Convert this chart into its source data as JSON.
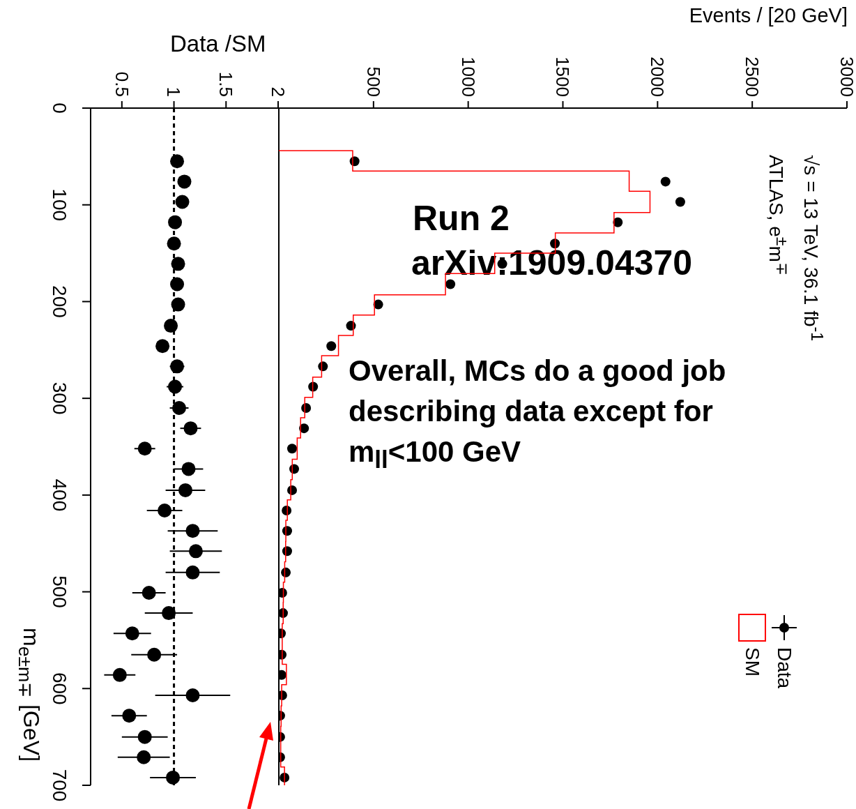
{
  "chart_data": [
    {
      "type": "scatter",
      "orientation": "horizontal",
      "xlabel": "Data /SM",
      "ylabel": "m$_{e±m∓}$ [GeV]",
      "xlim": [
        0.2,
        2
      ],
      "xticks": [
        0.5,
        1,
        1.5,
        2
      ],
      "ylim": [
        700,
        0
      ],
      "yticks": [
        0,
        100,
        200,
        300,
        400,
        500,
        600,
        700
      ],
      "marker": "circle",
      "color": "#000000",
      "x": [
        55,
        76,
        97,
        118,
        140,
        161,
        182,
        203,
        225,
        246,
        267,
        288,
        310,
        331,
        352,
        373,
        395,
        416,
        437,
        458,
        480,
        501,
        522,
        543,
        565,
        586,
        607,
        628,
        650,
        671,
        692
      ],
      "values": [
        1.03,
        1.1,
        1.08,
        1.01,
        1.0,
        1.04,
        1.03,
        1.04,
        0.97,
        0.89,
        1.03,
        1.01,
        1.05,
        1.16,
        0.72,
        1.14,
        1.11,
        0.91,
        1.18,
        1.21,
        1.18,
        0.76,
        0.95,
        0.6,
        0.81,
        0.48,
        1.18,
        0.57,
        0.72,
        0.71,
        0.99
      ],
      "errors": [
        0.05,
        0.03,
        0.03,
        0.03,
        0.03,
        0.03,
        0.03,
        0.04,
        0.05,
        0.06,
        0.07,
        0.08,
        0.09,
        0.1,
        0.1,
        0.14,
        0.19,
        0.17,
        0.24,
        0.25,
        0.26,
        0.16,
        0.23,
        0.18,
        0.22,
        0.15,
        0.36,
        0.17,
        0.22,
        0.25,
        0.22
      ],
      "ref_lines": [
        {
          "axis": "x",
          "value": 1,
          "line_style": "dashed",
          "color": "#000000"
        }
      ]
    },
    {
      "type": "histogram",
      "orientation": "horizontal",
      "xlabel": "Events / [20 GeV]",
      "xlim": [
        0,
        3000
      ],
      "xticks": [
        500,
        1000,
        1500,
        2000,
        2500,
        3000
      ],
      "ylim": [
        700,
        0
      ],
      "yticks": [
        0,
        100,
        200,
        300,
        400,
        500,
        600,
        700
      ],
      "tick_labels": "x",
      "legend": "bottom right",
      "marker": "circle",
      "bins": [
        44,
        65,
        86,
        108,
        129,
        150,
        171,
        193,
        214,
        235,
        256,
        278,
        299,
        320,
        341,
        363,
        384,
        405,
        426,
        448,
        469,
        490,
        511,
        533,
        554,
        575,
        596,
        618,
        639,
        660,
        681,
        703
      ],
      "series": [
        {
          "name": "Data",
          "type": "scatter",
          "color": "#000000",
          "x": [
            55,
            76,
            97,
            118,
            140,
            161,
            182,
            203,
            225,
            246,
            267,
            288,
            310,
            331,
            352,
            373,
            395,
            416,
            437,
            458,
            480,
            501,
            522,
            543,
            565,
            586,
            607,
            628,
            650,
            671,
            692
          ],
          "values": [
            400,
            2042,
            2120,
            1790,
            1458,
            1180,
            906,
            525,
            381,
            277,
            233,
            181,
            144,
            133,
            70,
            81,
            70,
            41,
            44,
            44,
            37,
            18,
            22,
            11,
            15,
            15,
            18,
            7,
            7,
            7,
            30
          ]
        },
        {
          "name": "SM",
          "type": "histogram",
          "color": "#ff0000",
          "values": [
            390,
            1850,
            1960,
            1770,
            1460,
            1140,
            880,
            505,
            393,
            315,
            226,
            179,
            137,
            115,
            97,
            71,
            63,
            45,
            37,
            36,
            31,
            24,
            23,
            18,
            18,
            40,
            15,
            12,
            10,
            10,
            30
          ]
        }
      ],
      "annotations": [
        "√s = 13 TeV, 36.1 fb$^{-1}$",
        "ATLAS, e$^{±}$m$^{∓}$",
        "Run 2",
        "arXiv:1909.04370",
        "Overall, MCs do a good job describing data except for m$_{ll}$<100 GeV"
      ]
    }
  ]
}
